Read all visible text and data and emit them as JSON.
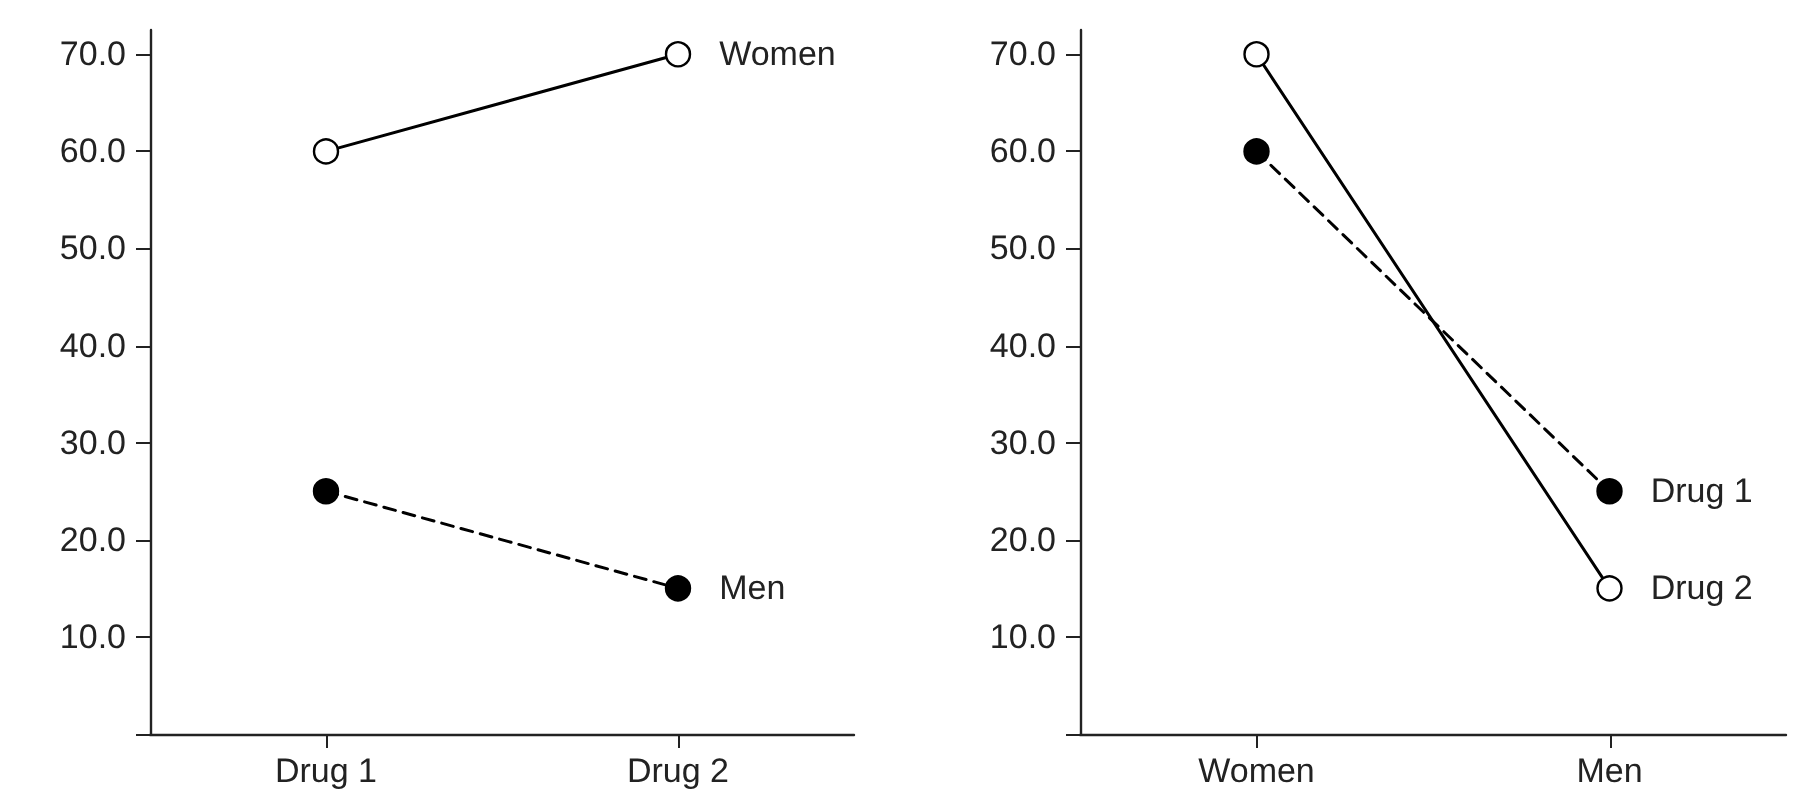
{
  "chart_data": [
    {
      "type": "line",
      "categories": [
        "Drug 1",
        "Drug 2"
      ],
      "ylim": [
        0,
        72.5
      ],
      "yticks": [
        {
          "value": 0,
          "label": null
        },
        {
          "value": 10,
          "label": "10.0"
        },
        {
          "value": 20,
          "label": "20.0"
        },
        {
          "value": 30,
          "label": "30.0"
        },
        {
          "value": 40,
          "label": "40.0"
        },
        {
          "value": 50,
          "label": "50.0"
        },
        {
          "value": 60,
          "label": "60.0"
        },
        {
          "value": 70,
          "label": "70.0"
        }
      ],
      "grid": false,
      "legend": false,
      "marker": "circle",
      "series": [
        {
          "name": "Women",
          "color": "#000000",
          "line_style": "solid",
          "values": [
            60,
            70
          ]
        },
        {
          "name": "Men",
          "color": "#000000",
          "line_style": "dashed",
          "values": [
            25,
            15
          ]
        }
      ]
    },
    {
      "type": "line",
      "categories": [
        "Women",
        "Men"
      ],
      "ylim": [
        0,
        72.5
      ],
      "yticks": [
        {
          "value": 0,
          "label": null
        },
        {
          "value": 10,
          "label": "10.0"
        },
        {
          "value": 20,
          "label": "20.0"
        },
        {
          "value": 30,
          "label": "30.0"
        },
        {
          "value": 40,
          "label": "40.0"
        },
        {
          "value": 50,
          "label": "50.0"
        },
        {
          "value": 60,
          "label": "60.0"
        },
        {
          "value": 70,
          "label": "70.0"
        }
      ],
      "grid": false,
      "legend": false,
      "marker": "circle",
      "series": [
        {
          "name": "Drug 1",
          "color": "#000000",
          "line_style": "dashed",
          "values": [
            60,
            25
          ]
        },
        {
          "name": "Drug 2",
          "color": "#000000",
          "line_style": "solid",
          "values": [
            70,
            15
          ]
        }
      ]
    }
  ]
}
